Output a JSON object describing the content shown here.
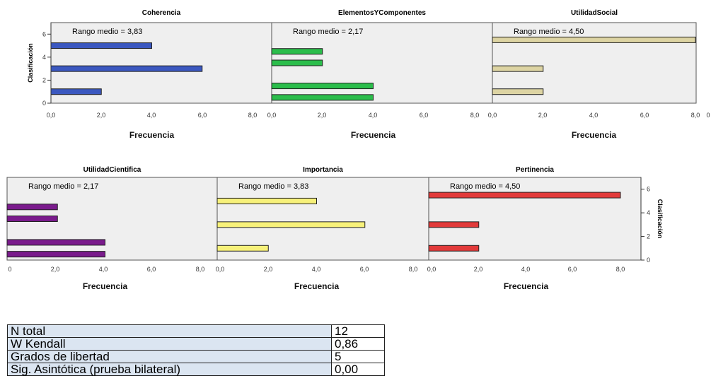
{
  "chart_data": [
    {
      "type": "bar",
      "orientation": "horizontal",
      "title": "Coherencia",
      "annotation": "Rango medio = 3,83",
      "color": "#3b58c0",
      "categories": [
        1,
        3,
        5
      ],
      "values": [
        2,
        6,
        4
      ],
      "xlabel": "Frecuencia",
      "ylabel": "Clasificación",
      "xlim": [
        0,
        8
      ],
      "xticks": [
        "0,0",
        "2,0",
        "4,0",
        "6,0",
        "8,0"
      ],
      "ylim": [
        0,
        7
      ],
      "yticks": [
        "0",
        "2",
        "4",
        "6"
      ],
      "yaxis": "left"
    },
    {
      "type": "bar",
      "orientation": "horizontal",
      "title": "ElementosYComponentes",
      "annotation": "Rango medio = 2,17",
      "color": "#2bbd4b",
      "categories": [
        0.5,
        1.5,
        3.5,
        4.5
      ],
      "values": [
        4,
        4,
        2,
        2
      ],
      "xlabel": "Frecuencia",
      "xlim": [
        0,
        8
      ],
      "xticks": [
        "0,0",
        "2,0",
        "4,0",
        "6,0",
        "8,0"
      ],
      "ylim": [
        0,
        7
      ]
    },
    {
      "type": "bar",
      "orientation": "horizontal",
      "title": "UtilidadSocial",
      "annotation": "Rango medio = 4,50",
      "color": "#ddd4a3",
      "categories": [
        1,
        3,
        5.5
      ],
      "values": [
        2,
        2,
        8
      ],
      "xlabel": "Frecuencia",
      "xlim": [
        0,
        8
      ],
      "xticks": [
        "0,0",
        "2,0",
        "4,0",
        "6,0",
        "8,0"
      ],
      "ylim": [
        0,
        7
      ]
    },
    {
      "type": "bar",
      "orientation": "horizontal",
      "title": "UtilidadCientifica",
      "annotation": "Rango medio = 2,17",
      "color": "#7a1b8c",
      "categories": [
        0.5,
        1.5,
        3.5,
        4.5
      ],
      "values": [
        4,
        4,
        2,
        2
      ],
      "xlabel": "Frecuencia",
      "xlim": [
        0,
        8
      ],
      "xticks": [
        "0",
        "2,0",
        "4,0",
        "6,0",
        "8,0"
      ],
      "ylim": [
        0,
        7
      ]
    },
    {
      "type": "bar",
      "orientation": "horizontal",
      "title": "Importancia",
      "annotation": "Rango medio = 3,83",
      "color": "#f7f17a",
      "categories": [
        1,
        3,
        5
      ],
      "values": [
        2,
        6,
        4
      ],
      "xlabel": "Frecuencia",
      "xlim": [
        0,
        8
      ],
      "xticks": [
        "0,0",
        "2,0",
        "4,0",
        "6,0",
        "8,0"
      ],
      "ylim": [
        0,
        7
      ]
    },
    {
      "type": "bar",
      "orientation": "horizontal",
      "title": "Pertinencia",
      "annotation": "Rango medio = 4,50",
      "color": "#e23a3a",
      "categories": [
        1,
        3,
        5.5
      ],
      "values": [
        2,
        2,
        8
      ],
      "xlabel": "Frecuencia",
      "ylabel": "Clasificación",
      "xlim": [
        0,
        8
      ],
      "xticks": [
        "0,0",
        "2,0",
        "4,0",
        "6,0",
        "8,0"
      ],
      "ylim": [
        0,
        7
      ],
      "yticks": [
        "0",
        "2",
        "4",
        "6"
      ],
      "yaxis": "right"
    }
  ],
  "extra_ticks": {
    "top_row_end": "0"
  },
  "stats_table": {
    "rows": [
      {
        "label": "N total",
        "value": "12"
      },
      {
        "label": "W Kendall",
        "value": "0,86"
      },
      {
        "label": "Grados de libertad",
        "value": "5"
      },
      {
        "label": "Sig. Asintótica (prueba bilateral)",
        "value": "0,00"
      }
    ]
  },
  "colors": {
    "panel_bg": "#efefef",
    "bar_border": "#222222",
    "table_label_bg": "#dbe5f1"
  }
}
